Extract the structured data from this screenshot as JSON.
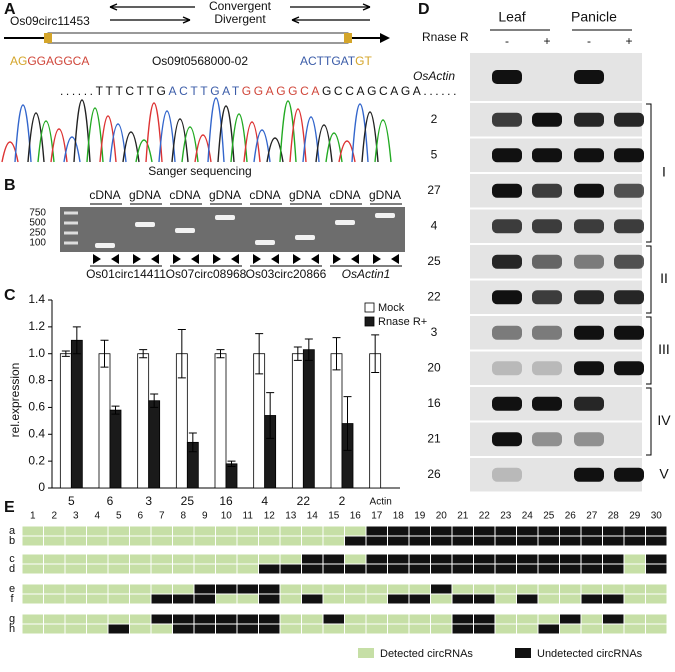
{
  "panel_a": {
    "label": "A",
    "gene": "Os09circ11453",
    "convergent": "Convergent",
    "divergent": "Divergent",
    "exon": "Os09t0568000-02",
    "left_seq": [
      "AG",
      "GGAGGCA"
    ],
    "right_seq": [
      "ACTTGAT",
      "GT"
    ],
    "sequence": [
      "......TTTCTTG",
      "ACTTGAT",
      "GGAGGCA",
      "GCCAGCAGA......"
    ],
    "caption": "Sanger sequencing"
  },
  "panel_b": {
    "label": "B",
    "lanes": [
      "cDNA",
      "gDNA",
      "cDNA",
      "gDNA",
      "cDNA",
      "gDNA",
      "cDNA",
      "gDNA"
    ],
    "ladder": [
      "750",
      "500",
      "250",
      "100"
    ],
    "genes": [
      "Os01circ14411",
      "Os07circ08968",
      "Os03circ20866",
      "OsActin1"
    ]
  },
  "chart_data": {
    "type": "bar",
    "label": "C",
    "ylabel": "rel.expression",
    "categories": [
      "5",
      "6",
      "3",
      "25",
      "16",
      "4",
      "22",
      "2",
      "Actin"
    ],
    "series": [
      {
        "name": "Mock",
        "color": "#ffffff",
        "values": [
          1.0,
          1.0,
          1.0,
          1.0,
          1.0,
          1.0,
          1.0,
          1.0,
          1.0
        ],
        "errors": [
          0.02,
          0.1,
          0.03,
          0.18,
          0.03,
          0.15,
          0.05,
          0.12,
          0.14
        ]
      },
      {
        "name": "Rnase R+",
        "color": "#1a1a1a",
        "values": [
          1.1,
          0.58,
          0.65,
          0.34,
          0.18,
          0.54,
          1.03,
          0.48,
          null
        ],
        "errors": [
          0.1,
          0.03,
          0.05,
          0.07,
          0.02,
          0.17,
          0.08,
          0.2,
          null
        ]
      }
    ],
    "ylim": [
      0,
      1.4
    ],
    "yticks": [
      0,
      0.2,
      0.4,
      0.6,
      0.8,
      {
        "value": 1,
        "label": "1.0"
      },
      1.2,
      1.4
    ],
    "legend": "upper right"
  },
  "panel_d": {
    "label": "D",
    "tissues": [
      "Leaf",
      "Panicle"
    ],
    "treatment": "Rnase R",
    "signs": [
      "-",
      "+",
      "-",
      "+"
    ],
    "rows": [
      "OsActin",
      "2",
      "5",
      "27",
      "4",
      "25",
      "22",
      "3",
      "20",
      "16",
      "21",
      "26"
    ],
    "groups": [
      "I",
      "II",
      "III",
      "IV",
      "V"
    ]
  },
  "panel_e": {
    "label": "E",
    "columns": [
      "1",
      "2",
      "3",
      "4",
      "5",
      "6",
      "7",
      "8",
      "9",
      "10",
      "11",
      "12",
      "13",
      "14",
      "15",
      "16",
      "17",
      "18",
      "19",
      "20",
      "21",
      "22",
      "23",
      "24",
      "25",
      "26",
      "27",
      "28",
      "29",
      "30"
    ],
    "rows": [
      {
        "label": "a",
        "undetected": [
          17,
          18,
          19,
          20,
          21,
          22,
          23,
          24,
          25,
          26,
          27,
          28,
          29,
          30
        ]
      },
      {
        "label": "b",
        "undetected": [
          16,
          17,
          18,
          19,
          20,
          21,
          22,
          23,
          24,
          25,
          26,
          27,
          28,
          29,
          30
        ]
      },
      {
        "label": "c",
        "undetected": [
          14,
          15,
          17,
          18,
          19,
          20,
          21,
          22,
          23,
          24,
          25,
          26,
          27,
          28,
          30
        ]
      },
      {
        "label": "d",
        "undetected": [
          12,
          13,
          14,
          15,
          16,
          17,
          18,
          19,
          20,
          21,
          22,
          23,
          24,
          25,
          26,
          27,
          28,
          30
        ]
      },
      {
        "label": "e",
        "undetected": [
          9,
          10,
          11,
          12,
          20
        ]
      },
      {
        "label": "f",
        "undetected": [
          7,
          8,
          9,
          12,
          14,
          18,
          19,
          21,
          22,
          24,
          27,
          28
        ]
      },
      {
        "label": "g",
        "undetected": [
          7,
          8,
          9,
          10,
          11,
          12,
          15,
          21,
          22,
          26,
          28
        ]
      },
      {
        "label": "h",
        "undetected": [
          5,
          8,
          9,
          10,
          11,
          12,
          21,
          22,
          25
        ]
      }
    ],
    "legend": [
      "Detected circRNAs",
      "Undetected circRNAs"
    ]
  }
}
